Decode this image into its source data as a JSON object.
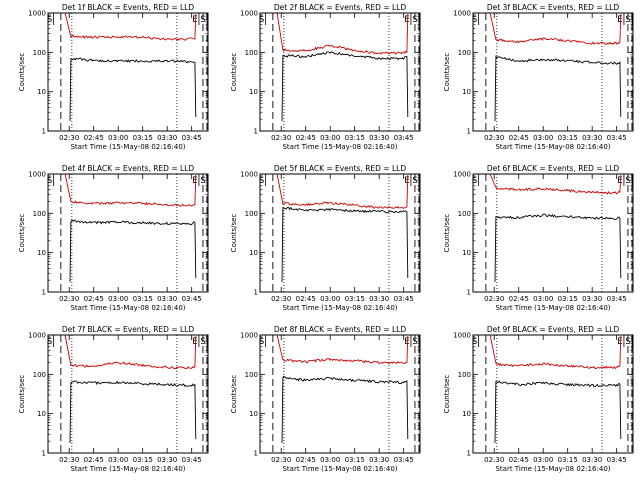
{
  "figure": {
    "bg_color": "#ffffff",
    "events_color": "#000000",
    "lld_color": "#cc0000"
  },
  "chart_data": [
    {
      "type": "line",
      "title": "Det 1f BLACK = Events, RED = LLD",
      "xlabel": "Start Time (15-May-08 02:16:40)",
      "ylabel": "Counts/sec",
      "y_scale": "log",
      "ylim": [
        1,
        1000
      ],
      "x_ticks": [
        "02:30",
        "02:45",
        "03:00",
        "03:15",
        "03:30",
        "03:45"
      ],
      "y_ticks": [
        "1",
        "10",
        "100",
        "1000"
      ],
      "series": [
        {
          "name": "Events",
          "color": "#000000",
          "x": [
            "02:31",
            "02:45",
            "03:00",
            "03:15",
            "03:30",
            "03:45",
            "03:47"
          ],
          "y": [
            70,
            62,
            60,
            60,
            60,
            57,
            58
          ]
        },
        {
          "name": "LLD",
          "color": "#cc0000",
          "x": [
            "02:28",
            "02:31",
            "02:45",
            "03:00",
            "03:15",
            "03:30",
            "03:45",
            "03:47"
          ],
          "y": [
            1000,
            260,
            240,
            245,
            240,
            215,
            220,
            230
          ]
        }
      ],
      "markers": [
        {
          "label": "S",
          "x": "02:18"
        },
        {
          "label": "E",
          "x": "03:47"
        },
        {
          "label": "S",
          "x": "03:52"
        }
      ]
    },
    {
      "type": "line",
      "title": "Det 2f BLACK = Events, RED = LLD",
      "xlabel": "Start Time (15-May-08 02:16:40)",
      "ylabel": "Counts/sec",
      "y_scale": "log",
      "ylim": [
        1,
        1000
      ],
      "x_ticks": [
        "02:30",
        "02:45",
        "03:00",
        "03:15",
        "03:30",
        "03:45"
      ],
      "y_ticks": [
        "1",
        "10",
        "100",
        "1000"
      ],
      "series": [
        {
          "name": "Events",
          "color": "#000000",
          "x": [
            "02:31",
            "02:45",
            "03:00",
            "03:15",
            "03:30",
            "03:45",
            "03:47"
          ],
          "y": [
            82,
            78,
            100,
            80,
            70,
            70,
            75
          ]
        },
        {
          "name": "LLD",
          "color": "#cc0000",
          "x": [
            "02:28",
            "02:31",
            "02:45",
            "03:00",
            "03:15",
            "03:30",
            "03:45",
            "03:47"
          ],
          "y": [
            1000,
            115,
            110,
            150,
            110,
            95,
            95,
            105
          ]
        }
      ],
      "markers": [
        {
          "label": "S",
          "x": "02:18"
        },
        {
          "label": "E",
          "x": "03:47"
        },
        {
          "label": "S",
          "x": "03:52"
        }
      ]
    },
    {
      "type": "line",
      "title": "Det 3f BLACK = Events, RED = LLD",
      "xlabel": "Start Time (15-May-08 02:16:40)",
      "ylabel": "Counts/sec",
      "y_scale": "log",
      "ylim": [
        1,
        1000
      ],
      "x_ticks": [
        "02:30",
        "02:45",
        "03:00",
        "03:15",
        "03:30",
        "03:45"
      ],
      "y_ticks": [
        "1",
        "10",
        "100",
        "1000"
      ],
      "series": [
        {
          "name": "Events",
          "color": "#000000",
          "x": [
            "02:31",
            "02:45",
            "03:00",
            "03:15",
            "03:30",
            "03:45",
            "03:47"
          ],
          "y": [
            75,
            60,
            65,
            62,
            55,
            52,
            55
          ]
        },
        {
          "name": "LLD",
          "color": "#cc0000",
          "x": [
            "02:28",
            "02:31",
            "02:45",
            "03:00",
            "03:15",
            "03:30",
            "03:45",
            "03:47"
          ],
          "y": [
            1000,
            210,
            185,
            220,
            200,
            170,
            170,
            180
          ]
        }
      ],
      "markers": [
        {
          "label": "S",
          "x": "02:18"
        },
        {
          "label": "E",
          "x": "03:47"
        },
        {
          "label": "S",
          "x": "03:52"
        }
      ]
    },
    {
      "type": "line",
      "title": "Det 4f BLACK = Events, RED = LLD",
      "xlabel": "Start Time (15-May-08 02:16:40)",
      "ylabel": "Counts/sec",
      "y_scale": "log",
      "ylim": [
        1,
        1000
      ],
      "x_ticks": [
        "02:30",
        "02:45",
        "03:00",
        "03:15",
        "03:30",
        "03:45"
      ],
      "y_ticks": [
        "1",
        "10",
        "100",
        "1000"
      ],
      "series": [
        {
          "name": "Events",
          "color": "#000000",
          "x": [
            "02:31",
            "02:45",
            "03:00",
            "03:15",
            "03:30",
            "03:45",
            "03:47"
          ],
          "y": [
            65,
            58,
            60,
            57,
            55,
            55,
            60
          ]
        },
        {
          "name": "LLD",
          "color": "#cc0000",
          "x": [
            "02:28",
            "02:31",
            "02:45",
            "03:00",
            "03:15",
            "03:30",
            "03:45",
            "03:47"
          ],
          "y": [
            1000,
            200,
            175,
            185,
            180,
            165,
            160,
            175
          ]
        }
      ],
      "markers": [
        {
          "label": "S",
          "x": "02:18"
        },
        {
          "label": "E",
          "x": "03:47"
        },
        {
          "label": "S",
          "x": "03:52"
        }
      ]
    },
    {
      "type": "line",
      "title": "Det 5f BLACK = Events, RED = LLD",
      "xlabel": "Start Time (15-May-08 02:16:40)",
      "ylabel": "Counts/sec",
      "y_scale": "log",
      "ylim": [
        1,
        1000
      ],
      "x_ticks": [
        "02:30",
        "02:45",
        "03:00",
        "03:15",
        "03:30",
        "03:45"
      ],
      "y_ticks": [
        "1",
        "10",
        "100",
        "1000"
      ],
      "series": [
        {
          "name": "Events",
          "color": "#000000",
          "x": [
            "02:31",
            "02:45",
            "03:00",
            "03:15",
            "03:30",
            "03:45",
            "03:47"
          ],
          "y": [
            140,
            120,
            125,
            115,
            110,
            110,
            115
          ]
        },
        {
          "name": "LLD",
          "color": "#cc0000",
          "x": [
            "02:28",
            "02:31",
            "02:45",
            "03:00",
            "03:15",
            "03:30",
            "03:45",
            "03:47"
          ],
          "y": [
            1000,
            180,
            165,
            185,
            160,
            140,
            140,
            150
          ]
        }
      ],
      "markers": [
        {
          "label": "S",
          "x": "02:18"
        },
        {
          "label": "E",
          "x": "03:47"
        },
        {
          "label": "S",
          "x": "03:52"
        }
      ]
    },
    {
      "type": "line",
      "title": "Det 6f BLACK = Events, RED = LLD",
      "xlabel": "Start Time (15-May-08 02:16:40)",
      "ylabel": "Counts/sec",
      "y_scale": "log",
      "ylim": [
        1,
        1000
      ],
      "x_ticks": [
        "02:30",
        "02:45",
        "03:00",
        "03:15",
        "03:30",
        "03:45"
      ],
      "y_ticks": [
        "1",
        "10",
        "100",
        "1000"
      ],
      "series": [
        {
          "name": "Events",
          "color": "#000000",
          "x": [
            "02:31",
            "02:45",
            "03:00",
            "03:15",
            "03:30",
            "03:45",
            "03:47"
          ],
          "y": [
            80,
            78,
            90,
            82,
            75,
            75,
            80
          ]
        },
        {
          "name": "LLD",
          "color": "#cc0000",
          "x": [
            "02:28",
            "02:31",
            "02:45",
            "03:00",
            "03:15",
            "03:30",
            "03:45",
            "03:47"
          ],
          "y": [
            1000,
            440,
            400,
            420,
            380,
            340,
            330,
            350
          ]
        }
      ],
      "markers": [
        {
          "label": "S",
          "x": "02:18"
        },
        {
          "label": "E",
          "x": "03:47"
        },
        {
          "label": "S",
          "x": "03:52"
        }
      ]
    },
    {
      "type": "line",
      "title": "Det 7f BLACK = Events, RED = LLD",
      "xlabel": "Start Time (15-May-08 02:16:40)",
      "ylabel": "Counts/sec",
      "y_scale": "log",
      "ylim": [
        1,
        1000
      ],
      "x_ticks": [
        "02:30",
        "02:45",
        "03:00",
        "03:15",
        "03:30",
        "03:45"
      ],
      "y_ticks": [
        "1",
        "10",
        "100",
        "1000"
      ],
      "series": [
        {
          "name": "Events",
          "color": "#000000",
          "x": [
            "02:31",
            "02:45",
            "03:00",
            "03:15",
            "03:30",
            "03:45",
            "03:47"
          ],
          "y": [
            65,
            60,
            62,
            58,
            55,
            52,
            55
          ]
        },
        {
          "name": "LLD",
          "color": "#cc0000",
          "x": [
            "02:28",
            "02:31",
            "02:45",
            "03:00",
            "03:15",
            "03:30",
            "03:45",
            "03:47"
          ],
          "y": [
            1000,
            170,
            160,
            200,
            170,
            150,
            145,
            155
          ]
        }
      ],
      "markers": [
        {
          "label": "S",
          "x": "02:18"
        },
        {
          "label": "E",
          "x": "03:47"
        },
        {
          "label": "S",
          "x": "03:52"
        }
      ]
    },
    {
      "type": "line",
      "title": "Det 8f BLACK = Events, RED = LLD",
      "xlabel": "Start Time (15-May-08 02:16:40)",
      "ylabel": "Counts/sec",
      "y_scale": "log",
      "ylim": [
        1,
        1000
      ],
      "x_ticks": [
        "02:30",
        "02:45",
        "03:00",
        "03:15",
        "03:30",
        "03:45"
      ],
      "y_ticks": [
        "1",
        "10",
        "100",
        "1000"
      ],
      "series": [
        {
          "name": "Events",
          "color": "#000000",
          "x": [
            "02:31",
            "02:45",
            "03:00",
            "03:15",
            "03:30",
            "03:45",
            "03:47"
          ],
          "y": [
            85,
            70,
            80,
            70,
            65,
            62,
            65
          ]
        },
        {
          "name": "LLD",
          "color": "#cc0000",
          "x": [
            "02:28",
            "02:31",
            "02:45",
            "03:00",
            "03:15",
            "03:30",
            "03:45",
            "03:47"
          ],
          "y": [
            1000,
            230,
            210,
            240,
            220,
            200,
            195,
            210
          ]
        }
      ],
      "markers": [
        {
          "label": "S",
          "x": "02:18"
        },
        {
          "label": "E",
          "x": "03:47"
        },
        {
          "label": "S",
          "x": "03:52"
        }
      ]
    },
    {
      "type": "line",
      "title": "Det 9f BLACK = Events, RED = LLD",
      "xlabel": "Start Time (15-May-08 02:16:40)",
      "ylabel": "Counts/sec",
      "y_scale": "log",
      "ylim": [
        1,
        1000
      ],
      "x_ticks": [
        "02:30",
        "02:45",
        "03:00",
        "03:15",
        "03:30",
        "03:45"
      ],
      "y_ticks": [
        "1",
        "10",
        "100",
        "1000"
      ],
      "series": [
        {
          "name": "Events",
          "color": "#000000",
          "x": [
            "02:31",
            "02:45",
            "03:00",
            "03:15",
            "03:30",
            "03:45",
            "03:47"
          ],
          "y": [
            65,
            55,
            60,
            55,
            52,
            52,
            58
          ]
        },
        {
          "name": "LLD",
          "color": "#cc0000",
          "x": [
            "02:28",
            "02:31",
            "02:45",
            "03:00",
            "03:15",
            "03:30",
            "03:45",
            "03:47"
          ],
          "y": [
            1000,
            180,
            165,
            185,
            165,
            150,
            150,
            160
          ]
        }
      ],
      "markers": [
        {
          "label": "S",
          "x": "02:18"
        },
        {
          "label": "E",
          "x": "03:47"
        },
        {
          "label": "S",
          "x": "03:52"
        }
      ]
    }
  ]
}
